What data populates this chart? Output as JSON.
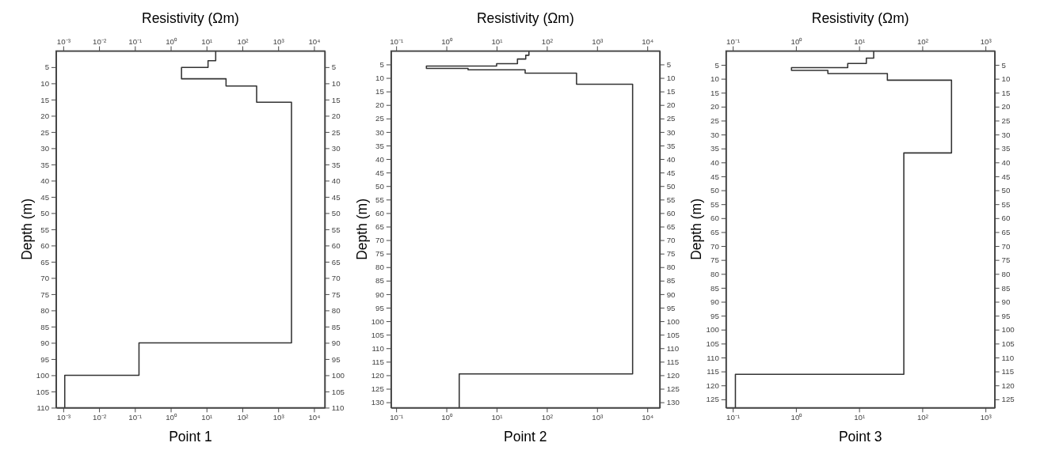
{
  "chart_data": [
    {
      "type": "line",
      "title": "Point 1",
      "xlabel": "Resistivity (Ωm)",
      "ylabel": "Depth (m)",
      "log": "x",
      "grid": false,
      "xlim": [
        0.00063,
        20000
      ],
      "xticks": [
        {
          "value": 0.001,
          "label": "10⁻³"
        },
        {
          "value": 0.01,
          "label": "10⁻²"
        },
        {
          "value": 0.1,
          "label": "10⁻¹"
        },
        {
          "value": 1,
          "label": "10⁰"
        },
        {
          "value": 10,
          "label": "10¹"
        },
        {
          "value": 100,
          "label": "10²"
        },
        {
          "value": 1000,
          "label": "10³"
        },
        {
          "value": 10000,
          "label": "10⁴"
        }
      ],
      "ylim": [
        110,
        0
      ],
      "yticks": [
        5,
        10,
        15,
        20,
        25,
        30,
        35,
        40,
        45,
        50,
        55,
        60,
        65,
        70,
        75,
        80,
        85,
        90,
        95,
        100,
        105,
        110
      ],
      "y2lim": [
        110,
        0
      ],
      "y2ticks": [
        5,
        10,
        15,
        20,
        25,
        30,
        35,
        40,
        45,
        50,
        55,
        60,
        65,
        70,
        75,
        80,
        85,
        90,
        95,
        100,
        105,
        110
      ],
      "series": [
        {
          "color": "#333333",
          "x": [
            18,
            18,
            11,
            11,
            2,
            2,
            35,
            35,
            250,
            250,
            2350,
            2350,
            0.13,
            0.13,
            0.0011,
            0.0011
          ],
          "values": [
            0,
            3,
            3,
            5.1,
            5.1,
            8.6,
            8.6,
            10.8,
            10.8,
            15.8,
            15.8,
            90,
            90,
            100,
            100,
            110
          ]
        }
      ]
    },
    {
      "type": "line",
      "title": "Point 2",
      "xlabel": "Resistivity (Ωm)",
      "ylabel": "Depth (m)",
      "log": "x",
      "grid": false,
      "xlim": [
        0.079,
        17700
      ],
      "xticks": [
        {
          "value": 0.1,
          "label": "10⁻¹"
        },
        {
          "value": 1,
          "label": "10⁰"
        },
        {
          "value": 10,
          "label": "10¹"
        },
        {
          "value": 100,
          "label": "10²"
        },
        {
          "value": 1000,
          "label": "10³"
        },
        {
          "value": 10000,
          "label": "10⁴"
        }
      ],
      "ylim": [
        132,
        0
      ],
      "yticks": [
        5,
        10,
        15,
        20,
        25,
        30,
        35,
        40,
        45,
        50,
        55,
        60,
        65,
        70,
        75,
        80,
        85,
        90,
        95,
        100,
        105,
        110,
        115,
        120,
        125,
        130
      ],
      "y2lim": [
        132,
        0
      ],
      "y2ticks": [
        5,
        10,
        15,
        20,
        25,
        30,
        35,
        40,
        45,
        50,
        55,
        60,
        65,
        70,
        75,
        80,
        85,
        90,
        95,
        100,
        105,
        110,
        115,
        120,
        125,
        130
      ],
      "series": [
        {
          "color": "#333333",
          "x": [
            44,
            44,
            38,
            38,
            26,
            26,
            10,
            10,
            0.4,
            0.4,
            2.7,
            2.7,
            37,
            37,
            390,
            390,
            5100,
            5100,
            1.8,
            1.8
          ],
          "values": [
            0,
            1.6,
            1.6,
            3,
            3,
            4.7,
            4.7,
            5.6,
            5.6,
            6.5,
            6.5,
            7,
            7,
            8.2,
            8.2,
            12.3,
            12.3,
            119.5,
            119.5,
            132
          ]
        }
      ]
    },
    {
      "type": "line",
      "title": "Point 3",
      "xlabel": "Resistivity (Ωm)",
      "ylabel": "Depth (m)",
      "log": "x",
      "grid": false,
      "xlim": [
        0.078,
        1400
      ],
      "xticks": [
        {
          "value": 0.1,
          "label": "10⁻¹"
        },
        {
          "value": 1,
          "label": "10⁰"
        },
        {
          "value": 10,
          "label": "10¹"
        },
        {
          "value": 100,
          "label": "10²"
        },
        {
          "value": 1000,
          "label": "10³"
        }
      ],
      "ylim": [
        128,
        0
      ],
      "yticks": [
        5,
        10,
        15,
        20,
        25,
        30,
        35,
        40,
        45,
        50,
        55,
        60,
        65,
        70,
        75,
        80,
        85,
        90,
        95,
        100,
        105,
        110,
        115,
        120,
        125
      ],
      "y2lim": [
        128,
        0
      ],
      "y2ticks": [
        5,
        10,
        15,
        20,
        25,
        30,
        35,
        40,
        45,
        50,
        55,
        60,
        65,
        70,
        75,
        80,
        85,
        90,
        95,
        100,
        105,
        110,
        115,
        120,
        125
      ],
      "series": [
        {
          "color": "#333333",
          "x": [
            17,
            17,
            13,
            13,
            6.6,
            6.6,
            0.85,
            0.85,
            3.2,
            3.2,
            28,
            28,
            290,
            290,
            51,
            51,
            0.11,
            0.11
          ],
          "values": [
            0,
            2.6,
            2.6,
            4.5,
            4.5,
            6,
            6,
            7,
            7,
            8.1,
            8.1,
            10.5,
            10.5,
            36.6,
            36.6,
            116,
            116,
            128
          ]
        }
      ]
    }
  ]
}
